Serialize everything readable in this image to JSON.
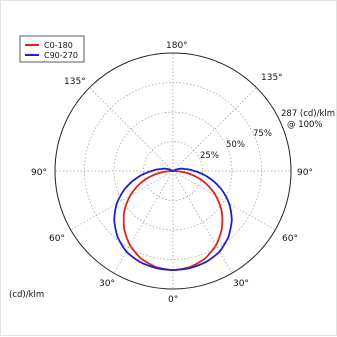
{
  "chart_data": {
    "type": "polar",
    "r_max_label": "287 (cd)/klm",
    "r_max_sub": "@ 100%",
    "unit_label": "(cd)/klm",
    "ring_labels": [
      "25%",
      "50%",
      "75%"
    ],
    "angle_labels": {
      "top": "180°",
      "upper_left": "135°",
      "upper_right": "135°",
      "mid_left": "90°",
      "mid_right": "90°",
      "lower_left": "60°",
      "lower_right": "60°",
      "low_left": "30°",
      "low_right": "30°",
      "bottom": "0°"
    },
    "grid": true,
    "legend_position": "top-left",
    "series": [
      {
        "name": "C0-180",
        "color": "#e3231b",
        "angle_deg": [
          0,
          10,
          20,
          30,
          40,
          50,
          60,
          70,
          80,
          90,
          100,
          110,
          120
        ],
        "relative": [
          0.84,
          0.827,
          0.79,
          0.728,
          0.643,
          0.54,
          0.42,
          0.287,
          0.146,
          0.0,
          0.0,
          0.0,
          0.0
        ]
      },
      {
        "name": "C90-270",
        "color": "#1f1fd1",
        "angle_deg": [
          0,
          10,
          20,
          30,
          40,
          50,
          60,
          70,
          80,
          90,
          100,
          110,
          120
        ],
        "relative": [
          0.84,
          0.835,
          0.82,
          0.79,
          0.73,
          0.65,
          0.55,
          0.43,
          0.3,
          0.18,
          0.1,
          0.05,
          0.0
        ]
      }
    ]
  }
}
